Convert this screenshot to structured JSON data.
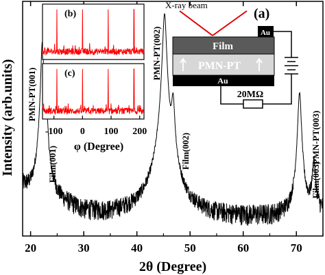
{
  "chart_data": {
    "type": "line",
    "xlabel": "2θ (Degree)",
    "ylabel": "Intensity (arb.units)",
    "xlim": [
      18.5,
      75
    ],
    "xticks": [
      20,
      30,
      40,
      50,
      60,
      70
    ],
    "yscale": "log",
    "yticks_shown": false,
    "series": [
      {
        "name": "",
        "color": "#000000",
        "baseline": [
          [
            18.5,
            1.9
          ],
          [
            20,
            1.6
          ],
          [
            21.5,
            1.5
          ],
          [
            22.8,
            1.55
          ],
          [
            25,
            1.3
          ],
          [
            30,
            1.05
          ],
          [
            35,
            1.0
          ],
          [
            40,
            1.05
          ],
          [
            43,
            1.15
          ],
          [
            47,
            1.1
          ],
          [
            50,
            1.0
          ],
          [
            55,
            0.95
          ],
          [
            60,
            0.95
          ],
          [
            65,
            0.95
          ],
          [
            69,
            1.0
          ],
          [
            72,
            1.05
          ],
          [
            75,
            1.05
          ]
        ],
        "peaks": [
          {
            "label": "PMN-PT(001)",
            "x": 22.2,
            "height": 62,
            "width": 0.25
          },
          {
            "label": "Film(001)",
            "x": 23.0,
            "height": 8,
            "width": 0.22
          },
          {
            "label": "PMN-PT(002)",
            "x": 45.2,
            "height": 125,
            "width": 0.32
          },
          {
            "label": "Film(002)",
            "x": 46.8,
            "height": 13,
            "width": 0.28
          },
          {
            "label": "PMN-PT(003)",
            "x": 70.6,
            "height": 18,
            "width": 0.3
          },
          {
            "label": "Film(003)",
            "x": 73.3,
            "height": 2.6,
            "width": 0.3
          }
        ]
      }
    ],
    "annotations": [
      {
        "text": "PMN-PT(001)"
      },
      {
        "text": "Film(001)"
      },
      {
        "text": "PMN-PT(002)"
      },
      {
        "text": "Film(002)"
      },
      {
        "text": "PMN-PT(003)"
      },
      {
        "text": "Film(003)"
      }
    ],
    "insets": [
      {
        "panel": "(b)",
        "type": "line",
        "color": "#ff0000",
        "xlim": [
          -140,
          215
        ],
        "peaks_at": [
          -90,
          0,
          90,
          180
        ]
      },
      {
        "panel": "(c)",
        "type": "line",
        "color": "#ff0000",
        "xlim": [
          -140,
          215
        ],
        "peaks_at": [
          -90,
          0,
          90,
          180
        ],
        "xticks": [
          -100,
          0,
          100,
          200
        ],
        "xlabel": "φ (Degree)"
      }
    ]
  },
  "diagram": {
    "panel": "(a)",
    "beam_label": "X-ray beam",
    "top_electrode": "Au",
    "film_label": "Film",
    "substrate_label": "PMN-PT",
    "bottom_electrode": "Au",
    "resistor_label": "20MΩ"
  }
}
